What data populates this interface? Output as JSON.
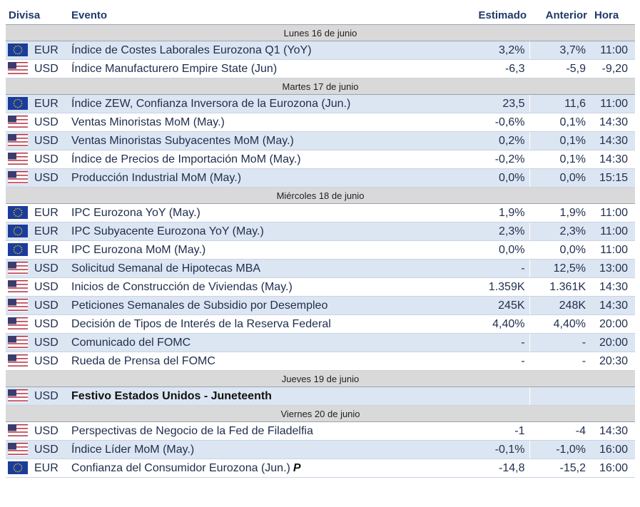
{
  "headers": {
    "currency": "Divisa",
    "event": "Evento",
    "estimate": "Estimado",
    "previous": "Anterior",
    "time": "Hora"
  },
  "colors": {
    "row_alt": "#dce6f2",
    "day_header": "#d9d9d9",
    "text": "#1f2d4d",
    "eu_flag": "#1a3c9c",
    "us_blue": "#3c3b6e",
    "us_red": "#b22234"
  },
  "days": [
    {
      "label": "Lunes 16 de junio",
      "events": [
        {
          "flag": "eu-flag-icon",
          "currency": "EUR",
          "event": "Índice de Costes Laborales Eurozona Q1 (YoY)",
          "estimate": "3,2%",
          "previous": "3,7%",
          "time": "11:00"
        },
        {
          "flag": "us-flag-icon",
          "currency": "USD",
          "event": "Índice Manufacturero Empire State (Jun)",
          "estimate": "-6,3",
          "previous": "-5,9",
          "time": "-9,20"
        }
      ]
    },
    {
      "label": "Martes 17 de junio",
      "events": [
        {
          "flag": "eu-flag-icon",
          "currency": "EUR",
          "event": "Índice ZEW, Confianza Inversora de la Eurozona (Jun.)",
          "estimate": "23,5",
          "previous": "11,6",
          "time": "11:00"
        },
        {
          "flag": "us-flag-icon",
          "currency": "USD",
          "event": "Ventas Minoristas MoM (May.)",
          "estimate": "-0,6%",
          "previous": "0,1%",
          "time": "14:30"
        },
        {
          "flag": "us-flag-icon",
          "currency": "USD",
          "event": "Ventas Minoristas Subyacentes MoM (May.)",
          "estimate": "0,2%",
          "previous": "0,1%",
          "time": "14:30"
        },
        {
          "flag": "us-flag-icon",
          "currency": "USD",
          "event": "Índice de Precios de Importación MoM (May.)",
          "estimate": "-0,2%",
          "previous": "0,1%",
          "time": "14:30"
        },
        {
          "flag": "us-flag-icon",
          "currency": "USD",
          "event": "Producción Industrial MoM (May.)",
          "estimate": "0,0%",
          "previous": "0,0%",
          "time": "15:15"
        }
      ]
    },
    {
      "label": "Miércoles 18 de junio",
      "events": [
        {
          "flag": "eu-flag-icon",
          "currency": "EUR",
          "event": "IPC Eurozona YoY (May.)",
          "estimate": "1,9%",
          "previous": "1,9%",
          "time": "11:00"
        },
        {
          "flag": "eu-flag-icon",
          "currency": "EUR",
          "event": "IPC Subyacente Eurozona YoY (May.)",
          "estimate": "2,3%",
          "previous": "2,3%",
          "time": "11:00"
        },
        {
          "flag": "eu-flag-icon",
          "currency": "EUR",
          "event": "IPC Eurozona MoM (May.)",
          "estimate": "0,0%",
          "previous": "0,0%",
          "time": "11:00"
        },
        {
          "flag": "us-flag-icon",
          "currency": "USD",
          "event": "Solicitud Semanal de Hipotecas MBA",
          "estimate": "-",
          "previous": "12,5%",
          "time": "13:00"
        },
        {
          "flag": "us-flag-icon",
          "currency": "USD",
          "event": "Inicios de Construcción de Viviendas (May.)",
          "estimate": "1.359K",
          "previous": "1.361K",
          "time": "14:30"
        },
        {
          "flag": "us-flag-icon",
          "currency": "USD",
          "event": "Peticiones Semanales de Subsidio por Desempleo",
          "estimate": "245K",
          "previous": "248K",
          "time": "14:30"
        },
        {
          "flag": "us-flag-icon",
          "currency": "USD",
          "event": "Decisión de Tipos de Interés de la Reserva Federal",
          "estimate": "4,40%",
          "previous": "4,40%",
          "time": "20:00"
        },
        {
          "flag": "us-flag-icon",
          "currency": "USD",
          "event": "Comunicado del FOMC",
          "estimate": "-",
          "previous": "-",
          "time": "20:00"
        },
        {
          "flag": "us-flag-icon",
          "currency": "USD",
          "event": "Rueda de Prensa del FOMC",
          "estimate": "-",
          "previous": "-",
          "time": "20:30"
        }
      ]
    },
    {
      "label": "Jueves 19 de junio",
      "events": [
        {
          "flag": "us-flag-icon",
          "currency": "USD",
          "event": "Festivo Estados Unidos - Juneteenth",
          "estimate": "",
          "previous": "",
          "time": "",
          "holiday": true
        }
      ]
    },
    {
      "label": "Viernes 20 de junio",
      "events": [
        {
          "flag": "us-flag-icon",
          "currency": "USD",
          "event": "Perspectivas de Negocio de la Fed de Filadelfia",
          "estimate": "-1",
          "previous": "-4",
          "time": "14:30"
        },
        {
          "flag": "us-flag-icon",
          "currency": "USD",
          "event": "Índice Líder MoM (May.)",
          "estimate": "-0,1%",
          "previous": "-1,0%",
          "time": "16:00"
        },
        {
          "flag": "eu-flag-icon",
          "currency": "EUR",
          "event": "Confianza del Consumidor Eurozona (Jun.)",
          "suffix": "P",
          "estimate": "-14,8",
          "previous": "-15,2",
          "time": "16:00"
        }
      ]
    }
  ]
}
